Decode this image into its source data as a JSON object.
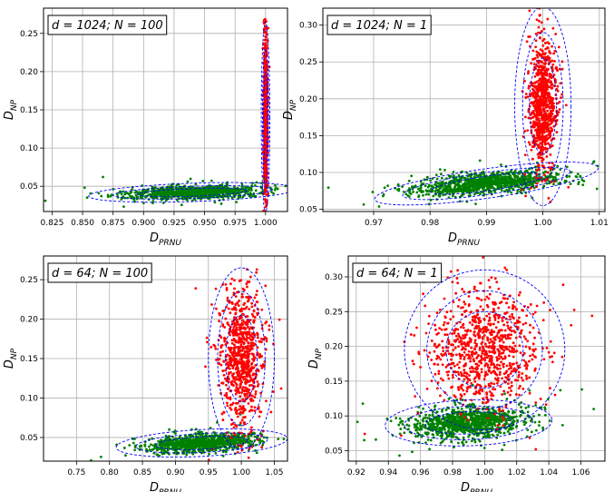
{
  "chart_data": [
    {
      "type": "scatter",
      "annotation": "d = 1024; N = 100",
      "xlabel": {
        "main": "D",
        "sub": "PRNU"
      },
      "ylabel": {
        "main": "D",
        "sub": "NP"
      },
      "xlim": [
        0.818,
        1.018
      ],
      "ylim": [
        0.017,
        0.283
      ],
      "xticks": [
        "0.825",
        "0.850",
        "0.875",
        "0.900",
        "0.925",
        "0.950",
        "0.975",
        "1.000"
      ],
      "xtick_values": [
        0.825,
        0.85,
        0.875,
        0.9,
        0.925,
        0.95,
        0.975,
        1.0
      ],
      "yticks": [
        "0.05",
        "0.10",
        "0.15",
        "0.20",
        "0.25"
      ],
      "ytick_values": [
        0.05,
        0.1,
        0.15,
        0.2,
        0.25
      ],
      "grid": true,
      "series": [
        {
          "color": "#008000",
          "n": 900,
          "center": [
            0.94,
            0.042
          ],
          "spread": [
            0.028,
            0.0045
          ],
          "corr": 0.35
        },
        {
          "color": "#ff0000",
          "n": 700,
          "center": [
            1.0,
            0.14
          ],
          "spread": [
            0.0008,
            0.05
          ],
          "corr": 0.0
        }
      ],
      "ellipses": [
        {
          "cx": 0.94,
          "cy": 0.042,
          "rx": 0.085,
          "ry": 0.012,
          "deg": 2
        },
        {
          "cx": 0.94,
          "cy": 0.042,
          "rx": 0.065,
          "ry": 0.008,
          "deg": 2
        },
        {
          "cx": 0.94,
          "cy": 0.042,
          "rx": 0.045,
          "ry": 0.005,
          "deg": 2
        },
        {
          "cx": 1.0,
          "cy": 0.14,
          "rx": 0.0035,
          "ry": 0.125,
          "deg": 0
        },
        {
          "cx": 1.0,
          "cy": 0.14,
          "rx": 0.0025,
          "ry": 0.09,
          "deg": 0
        },
        {
          "cx": 1.0,
          "cy": 0.14,
          "rx": 0.0016,
          "ry": 0.06,
          "deg": 0
        }
      ]
    },
    {
      "type": "scatter",
      "annotation": "d = 1024; N = 1",
      "xlabel": {
        "main": "D",
        "sub": "PRNU"
      },
      "ylabel": {
        "main": "D",
        "sub": "NP"
      },
      "xlim": [
        0.961,
        1.011
      ],
      "ylim": [
        0.047,
        0.323
      ],
      "xticks": [
        "0.97",
        "0.98",
        "0.99",
        "1.00",
        "1.01"
      ],
      "xtick_values": [
        0.97,
        0.98,
        0.99,
        1.0,
        1.01
      ],
      "yticks": [
        "0.05",
        "0.10",
        "0.15",
        "0.20",
        "0.25",
        "0.30"
      ],
      "ytick_values": [
        0.05,
        0.1,
        0.15,
        0.2,
        0.25,
        0.3
      ],
      "grid": true,
      "series": [
        {
          "color": "#008000",
          "n": 1000,
          "center": [
            0.99,
            0.085
          ],
          "spread": [
            0.0065,
            0.008
          ],
          "corr": 0.5
        },
        {
          "color": "#ff0000",
          "n": 800,
          "center": [
            1.0,
            0.19
          ],
          "spread": [
            0.0012,
            0.045
          ],
          "corr": 0.0
        }
      ],
      "ellipses": [
        {
          "cx": 0.99,
          "cy": 0.085,
          "rx": 0.02,
          "ry": 0.02,
          "deg": 8
        },
        {
          "cx": 0.99,
          "cy": 0.085,
          "rx": 0.015,
          "ry": 0.015,
          "deg": 8
        },
        {
          "cx": 0.99,
          "cy": 0.085,
          "rx": 0.01,
          "ry": 0.01,
          "deg": 8
        },
        {
          "cx": 1.0,
          "cy": 0.19,
          "rx": 0.005,
          "ry": 0.135,
          "deg": 0
        },
        {
          "cx": 1.0,
          "cy": 0.19,
          "rx": 0.0036,
          "ry": 0.1,
          "deg": 0
        },
        {
          "cx": 1.0,
          "cy": 0.19,
          "rx": 0.0024,
          "ry": 0.065,
          "deg": 0
        }
      ]
    },
    {
      "type": "scatter",
      "annotation": "d = 64; N = 100",
      "xlabel": {
        "main": "D",
        "sub": "PRNU"
      },
      "ylabel": {
        "main": "D",
        "sub": "NP"
      },
      "xlim": [
        0.7,
        1.07
      ],
      "ylim": [
        0.02,
        0.28
      ],
      "xticks": [
        "0.75",
        "0.80",
        "0.85",
        "0.90",
        "0.95",
        "1.00",
        "1.05"
      ],
      "xtick_values": [
        0.75,
        0.8,
        0.85,
        0.9,
        0.95,
        1.0,
        1.05
      ],
      "yticks": [
        "0.05",
        "0.10",
        "0.15",
        "0.20",
        "0.25"
      ],
      "ytick_values": [
        0.05,
        0.1,
        0.15,
        0.2,
        0.25
      ],
      "grid": true,
      "series": [
        {
          "color": "#008000",
          "n": 900,
          "center": [
            0.94,
            0.043
          ],
          "spread": [
            0.04,
            0.006
          ],
          "corr": 0.4
        },
        {
          "color": "#ff0000",
          "n": 800,
          "center": [
            1.0,
            0.15
          ],
          "spread": [
            0.016,
            0.045
          ],
          "corr": 0.0
        }
      ],
      "ellipses": [
        {
          "cx": 0.94,
          "cy": 0.043,
          "rx": 0.13,
          "ry": 0.017,
          "deg": 3
        },
        {
          "cx": 0.94,
          "cy": 0.043,
          "rx": 0.1,
          "ry": 0.012,
          "deg": 3
        },
        {
          "cx": 0.94,
          "cy": 0.043,
          "rx": 0.07,
          "ry": 0.008,
          "deg": 3
        },
        {
          "cx": 1.0,
          "cy": 0.15,
          "rx": 0.05,
          "ry": 0.115,
          "deg": 0
        },
        {
          "cx": 1.0,
          "cy": 0.15,
          "rx": 0.036,
          "ry": 0.085,
          "deg": 0
        },
        {
          "cx": 1.0,
          "cy": 0.15,
          "rx": 0.024,
          "ry": 0.055,
          "deg": 0
        }
      ]
    },
    {
      "type": "scatter",
      "annotation": "d = 64; N = 1",
      "xlabel": {
        "main": "D",
        "sub": "PRNU"
      },
      "ylabel": {
        "main": "D",
        "sub": "NP"
      },
      "xlim": [
        0.915,
        1.075
      ],
      "ylim": [
        0.035,
        0.33
      ],
      "xticks": [
        "0.92",
        "0.94",
        "0.96",
        "0.98",
        "1.00",
        "1.02",
        "1.04",
        "1.06"
      ],
      "xtick_values": [
        0.92,
        0.94,
        0.96,
        0.98,
        1.0,
        1.02,
        1.04,
        1.06
      ],
      "yticks": [
        "0.05",
        "0.10",
        "0.15",
        "0.20",
        "0.25",
        "0.30"
      ],
      "ytick_values": [
        0.05,
        0.1,
        0.15,
        0.2,
        0.25,
        0.3
      ],
      "grid": true,
      "series": [
        {
          "color": "#008000",
          "n": 1000,
          "center": [
            0.99,
            0.09
          ],
          "spread": [
            0.018,
            0.012
          ],
          "corr": 0.2
        },
        {
          "color": "#ff0000",
          "n": 900,
          "center": [
            1.0,
            0.195
          ],
          "spread": [
            0.016,
            0.04
          ],
          "corr": 0.0
        }
      ],
      "ellipses": [
        {
          "cx": 0.99,
          "cy": 0.09,
          "rx": 0.052,
          "ry": 0.033,
          "deg": 2
        },
        {
          "cx": 0.99,
          "cy": 0.09,
          "rx": 0.04,
          "ry": 0.024,
          "deg": 2
        },
        {
          "cx": 0.99,
          "cy": 0.09,
          "rx": 0.027,
          "ry": 0.016,
          "deg": 2
        },
        {
          "cx": 1.0,
          "cy": 0.195,
          "rx": 0.05,
          "ry": 0.115,
          "deg": 0
        },
        {
          "cx": 1.0,
          "cy": 0.195,
          "rx": 0.036,
          "ry": 0.085,
          "deg": 0
        },
        {
          "cx": 1.0,
          "cy": 0.195,
          "rx": 0.024,
          "ry": 0.055,
          "deg": 0
        }
      ]
    }
  ]
}
